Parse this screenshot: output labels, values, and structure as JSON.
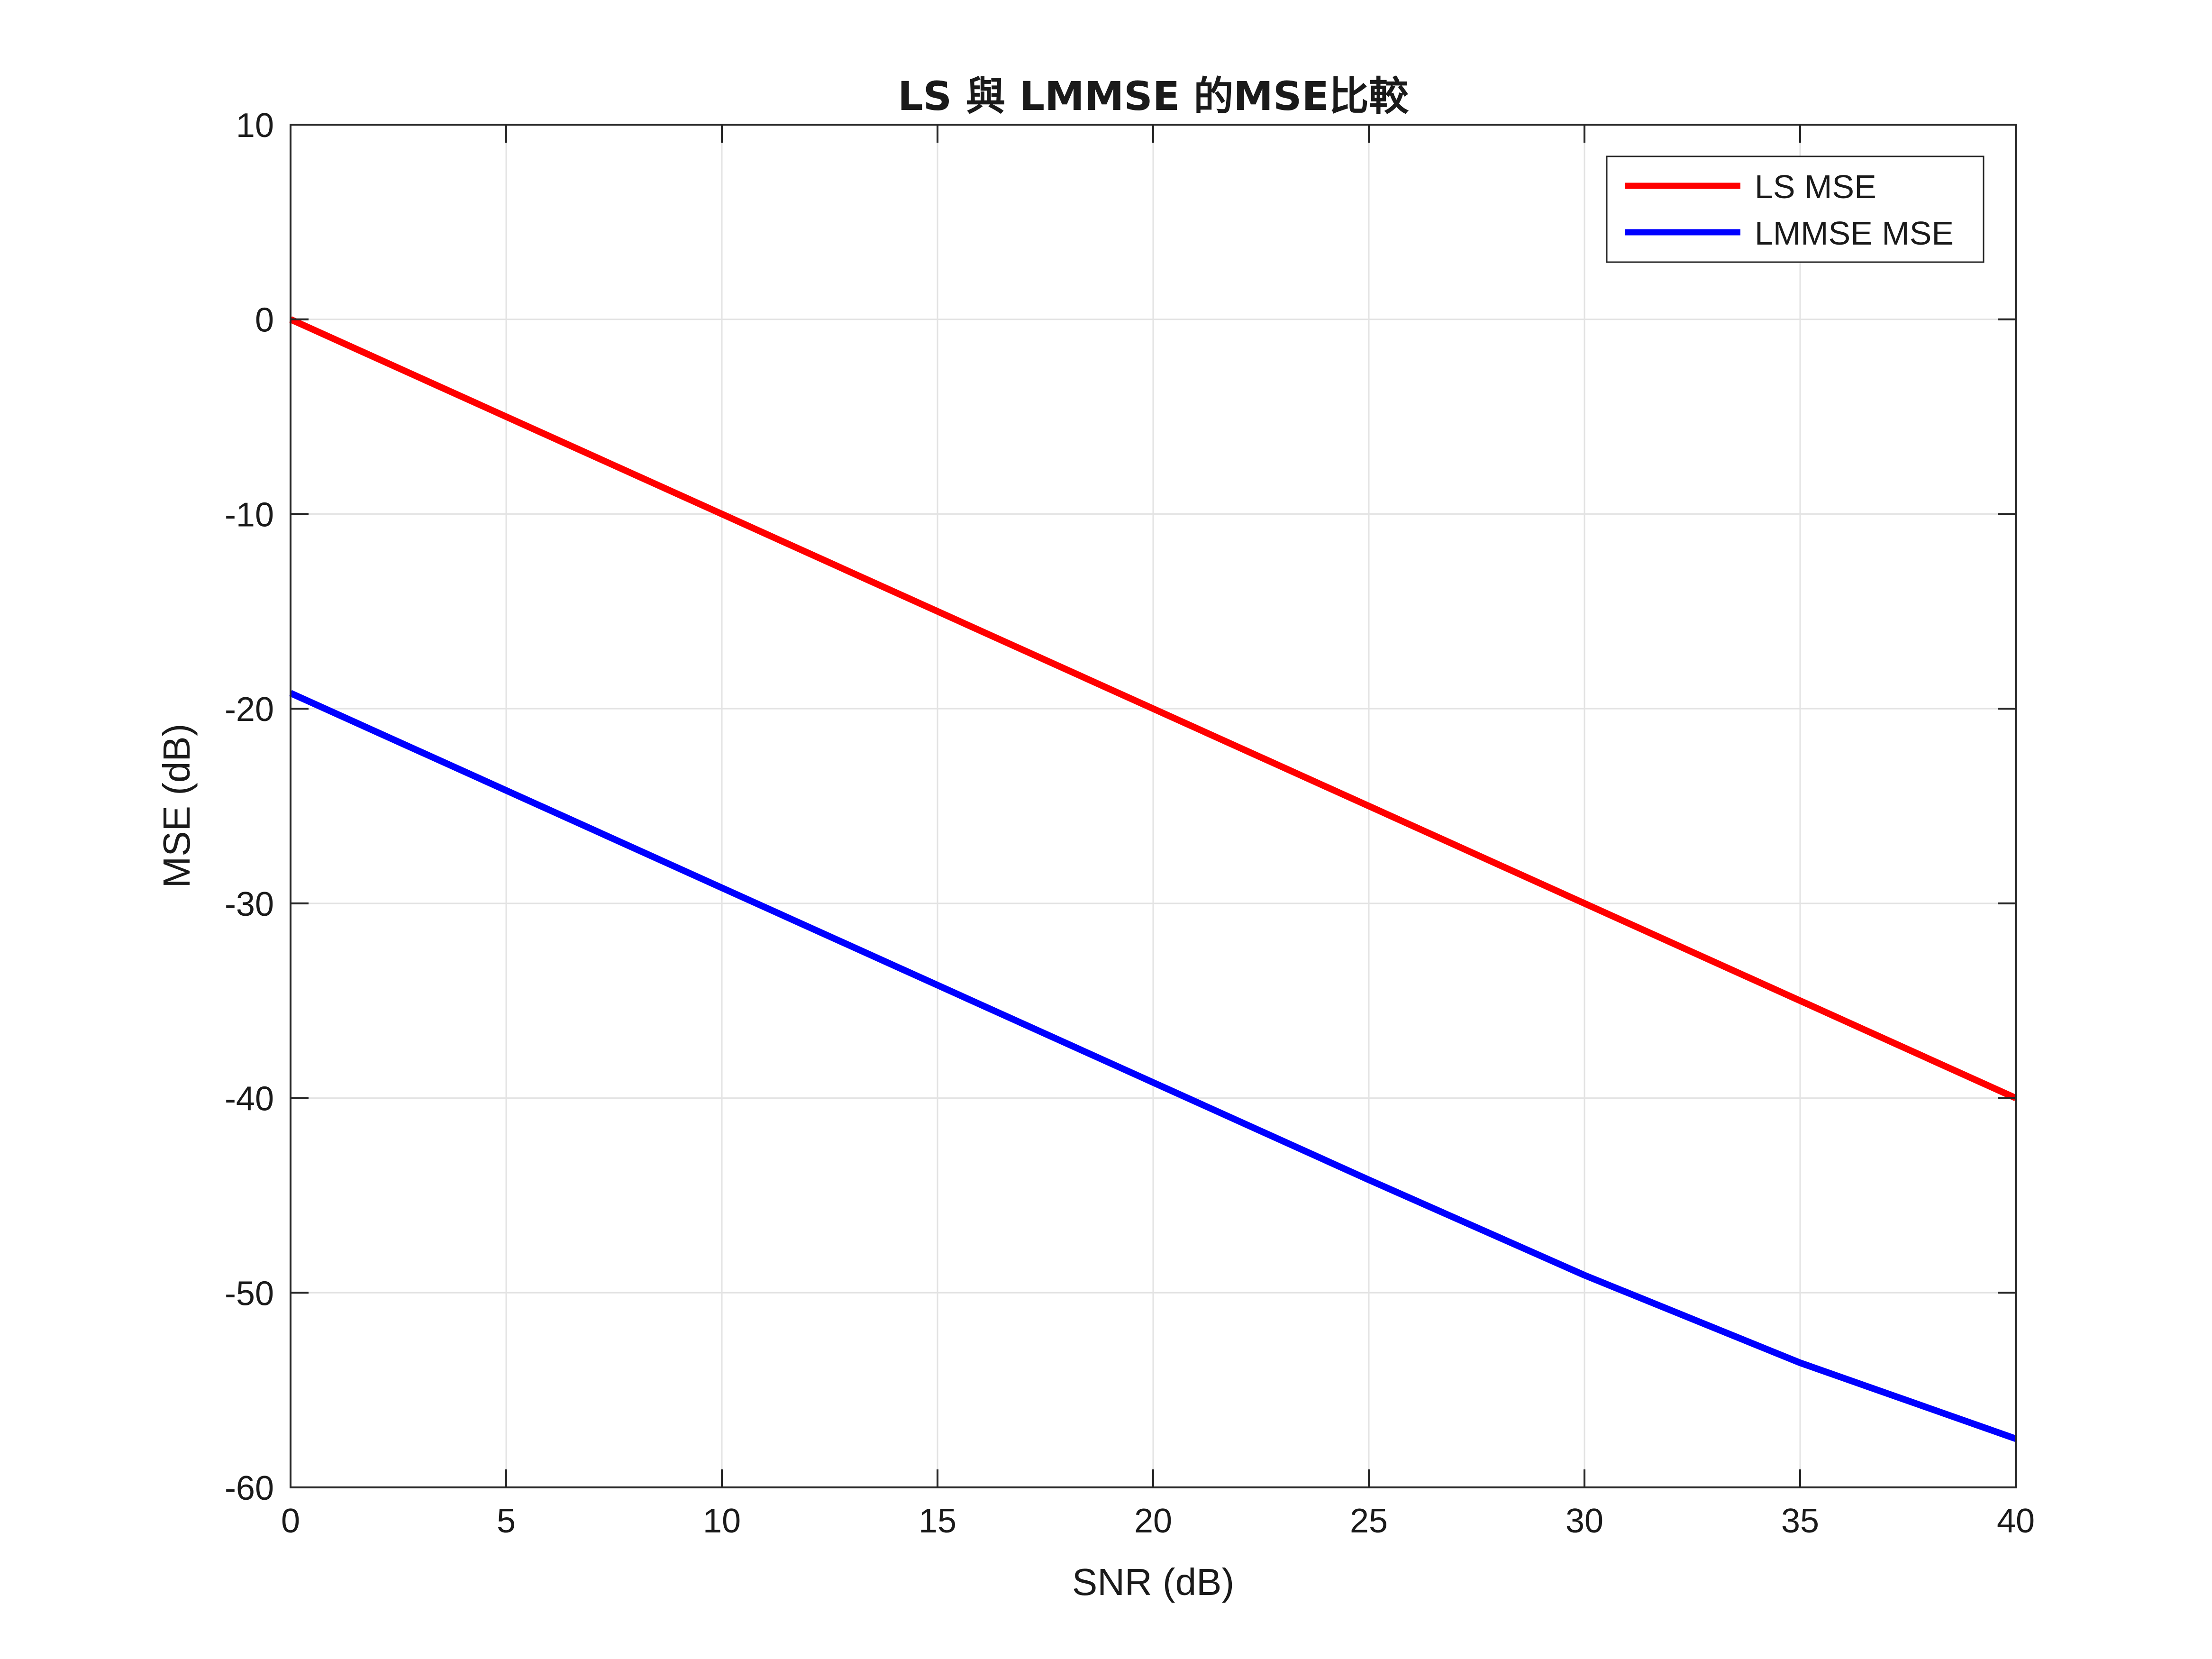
{
  "chart_data": {
    "type": "line",
    "title": "LS 與 LMMSE 的MSE比較",
    "xlabel": "SNR (dB)",
    "ylabel": "MSE (dB)",
    "xlim": [
      0,
      40
    ],
    "ylim": [
      -60,
      10
    ],
    "xticks": [
      "0",
      "5",
      "10",
      "15",
      "20",
      "25",
      "30",
      "35",
      "40"
    ],
    "yticks": [
      "10",
      "0",
      "-10",
      "-20",
      "-30",
      "-40",
      "-50",
      "-60"
    ],
    "grid": true,
    "legend_position": "top-right",
    "x": [
      0,
      5,
      10,
      15,
      20,
      25,
      30,
      35,
      40
    ],
    "series": [
      {
        "name": "LS MSE",
        "color": "#ff0000",
        "values": [
          0,
          -5,
          -10,
          -15,
          -20,
          -25,
          -30,
          -35,
          -40
        ]
      },
      {
        "name": "LMMSE MSE",
        "color": "#0000ff",
        "values": [
          -19.2,
          -24.2,
          -29.2,
          -34.2,
          -39.2,
          -44.2,
          -49.1,
          -53.6,
          -57.5
        ]
      }
    ]
  }
}
